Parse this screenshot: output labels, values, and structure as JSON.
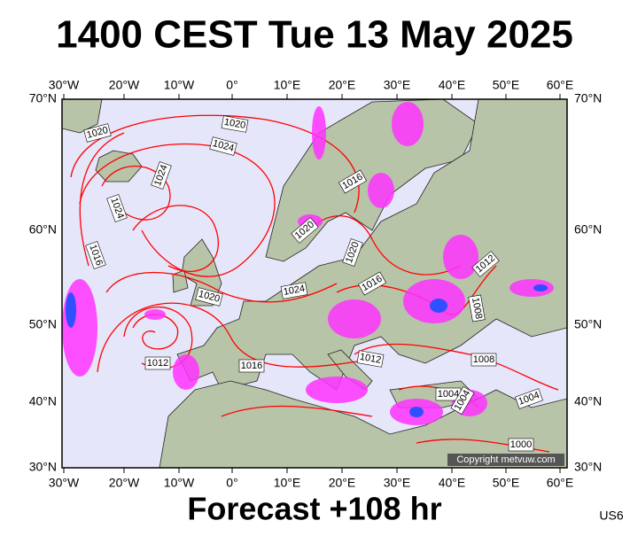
{
  "header": {
    "title": "1400 CEST Tue 13 May 2025"
  },
  "footer": {
    "forecast": "Forecast +108 hr",
    "code": "US6"
  },
  "longitudes": [
    "30°W",
    "20°W",
    "10°W",
    "0°",
    "10°E",
    "20°E",
    "30°E",
    "40°E",
    "50°E",
    "60°E"
  ],
  "latitudes": [
    "70°N",
    "60°N",
    "50°N",
    "40°N",
    "30°N"
  ],
  "isobar_labels": [
    "1020",
    "1020",
    "1024",
    "1024",
    "1024",
    "1016",
    "1016",
    "1020",
    "1020",
    "1024",
    "1020",
    "1016",
    "1012",
    "1008",
    "1012",
    "1016",
    "1012",
    "1008",
    "1004",
    "1004",
    "1004",
    "1000"
  ],
  "copyright": "Copyright metvuw.com"
}
